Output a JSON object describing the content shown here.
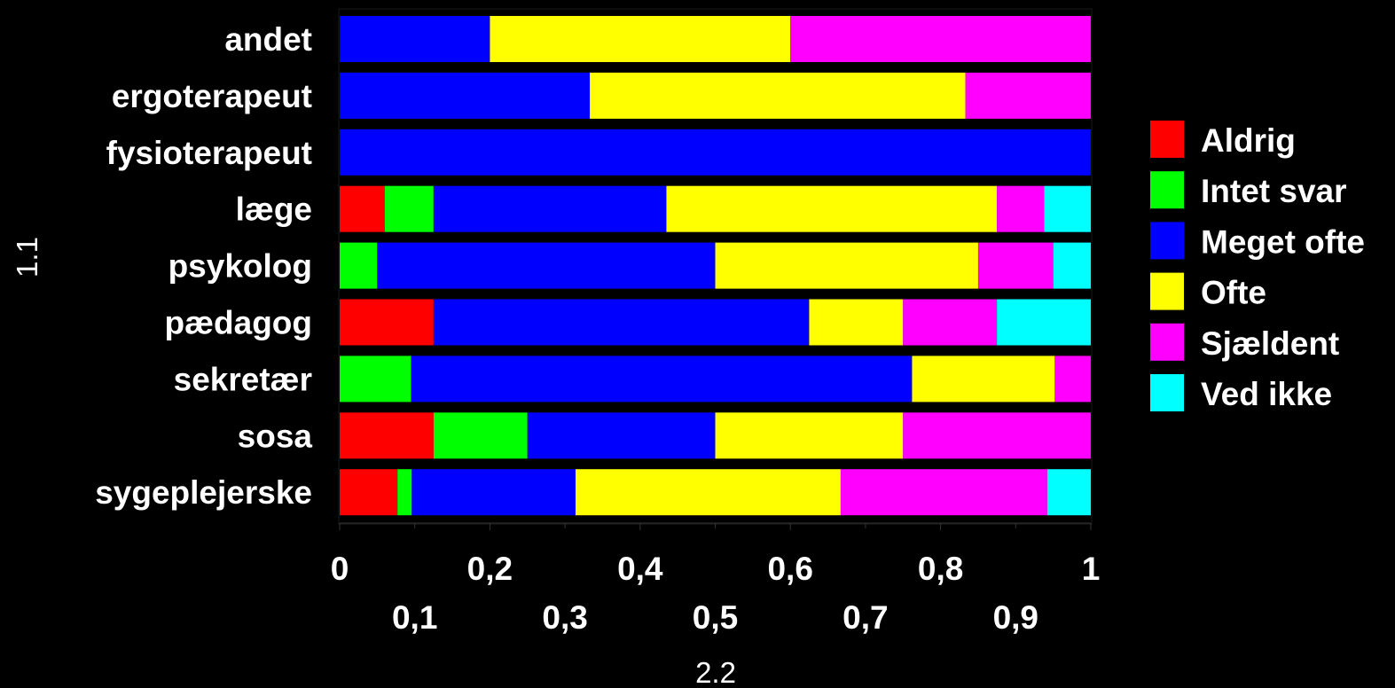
{
  "chart_data": {
    "type": "bar",
    "orientation": "horizontal",
    "stacked": true,
    "normalized": true,
    "categories": [
      "andet",
      "ergoterapeut",
      "fysioterapeut",
      "læge",
      "psykolog",
      "pædagog",
      "sekretær",
      "sosa",
      "sygeplejerske"
    ],
    "series": [
      {
        "name": "Aldrig",
        "color": "#ff0000",
        "values": [
          0,
          0,
          0,
          0.06,
          0,
          0.125,
          0,
          0.125,
          0.077
        ]
      },
      {
        "name": "Intet svar",
        "color": "#00ff00",
        "values": [
          0,
          0,
          0,
          0.065,
          0.05,
          0,
          0.095,
          0.125,
          0.019
        ]
      },
      {
        "name": "Meget ofte",
        "color": "#0000ff",
        "values": [
          0.2,
          0.333,
          1.0,
          0.31,
          0.45,
          0.5,
          0.667,
          0.25,
          0.218
        ]
      },
      {
        "name": "Ofte",
        "color": "#ffff00",
        "values": [
          0.4,
          0.5,
          0,
          0.44,
          0.35,
          0.125,
          0.19,
          0.25,
          0.353
        ]
      },
      {
        "name": "Sjældent",
        "color": "#ff00ff",
        "values": [
          0.4,
          0.167,
          0,
          0.063,
          0.1,
          0.125,
          0.048,
          0.25,
          0.275
        ]
      },
      {
        "name": "Ved ikke",
        "color": "#00ffff",
        "values": [
          0,
          0,
          0,
          0.062,
          0.05,
          0.125,
          0,
          0,
          0.058
        ]
      }
    ],
    "xlim": [
      0,
      1
    ],
    "xticks_top": [
      "0",
      "0,2",
      "0,4",
      "0,6",
      "0,8",
      "1"
    ],
    "xticks_top_values": [
      0,
      0.2,
      0.4,
      0.6,
      0.8,
      1.0
    ],
    "xticks_bottom": [
      "0,1",
      "0,3",
      "0,5",
      "0,7",
      "0,9"
    ],
    "xticks_bottom_values": [
      0.1,
      0.3,
      0.5,
      0.7,
      0.9
    ],
    "xlabel": "2.2",
    "ylabel": "1.1",
    "legend_position": "right",
    "grid": false
  }
}
